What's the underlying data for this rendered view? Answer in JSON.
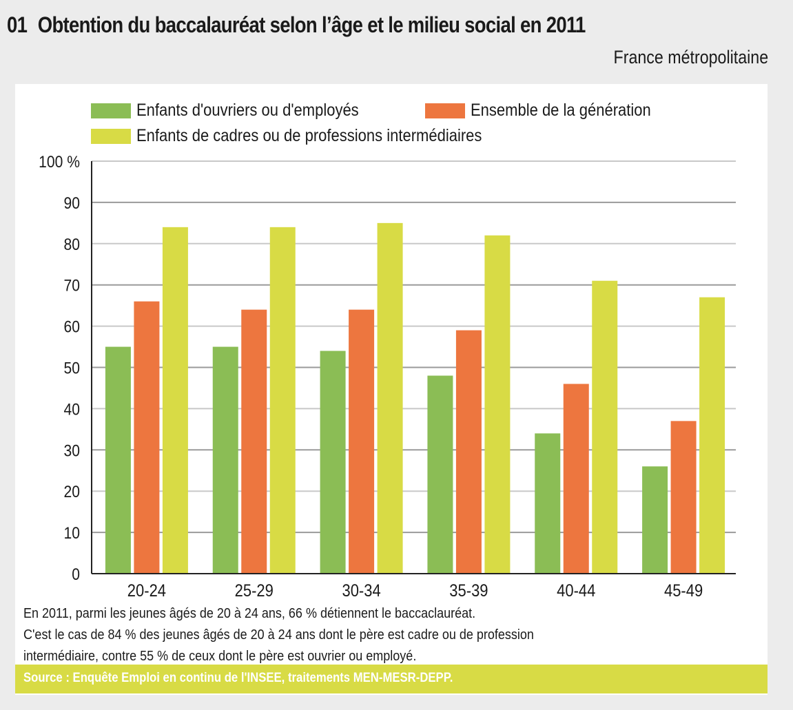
{
  "header": {
    "number": "01",
    "title": "Obtention du baccalauréat selon l’âge et le milieu social en 2011",
    "subtitle": "France métropolitaine"
  },
  "chart_data": {
    "type": "bar",
    "title": "Obtention du baccalauréat selon l’âge et le milieu social en 2011",
    "subtitle": "France métropolitaine",
    "xlabel": "",
    "ylabel": "%",
    "ylim": [
      0,
      100
    ],
    "yticks": [
      0,
      10,
      20,
      30,
      40,
      50,
      60,
      70,
      80,
      90,
      100
    ],
    "ytick_labels": [
      "0",
      "10",
      "20",
      "30",
      "40",
      "50",
      "60",
      "70",
      "80",
      "90",
      "100 %"
    ],
    "grid": true,
    "legend_position": "top",
    "categories": [
      "20-24",
      "25-29",
      "30-34",
      "35-39",
      "40-44",
      "45-49"
    ],
    "series": [
      {
        "name": "Enfants d'ouvriers ou d'employés",
        "color": "#8bbd55",
        "values": [
          55,
          55,
          54,
          48,
          34,
          26
        ]
      },
      {
        "name": "Ensemble de la génération",
        "color": "#ed763f",
        "values": [
          66,
          64,
          64,
          59,
          46,
          37
        ]
      },
      {
        "name": "Enfants de cadres ou de professions intermédiaires",
        "color": "#d8db45",
        "values": [
          84,
          84,
          85,
          82,
          71,
          67
        ]
      }
    ]
  },
  "notes": [
    "En 2011, parmi les jeunes âgés de 20 à 24 ans, 66 % détiennent le baccaclauréat.",
    "C'est le cas de 84 % des jeunes âgés de 20 à 24 ans dont le père est cadre ou de profession",
    "intermédiaire, contre 55 % de ceux dont le père est ouvrier ou employé."
  ],
  "source": "Source : Enquête Emploi en continu de l'INSEE, traitements MEN-MESR-DEPP."
}
